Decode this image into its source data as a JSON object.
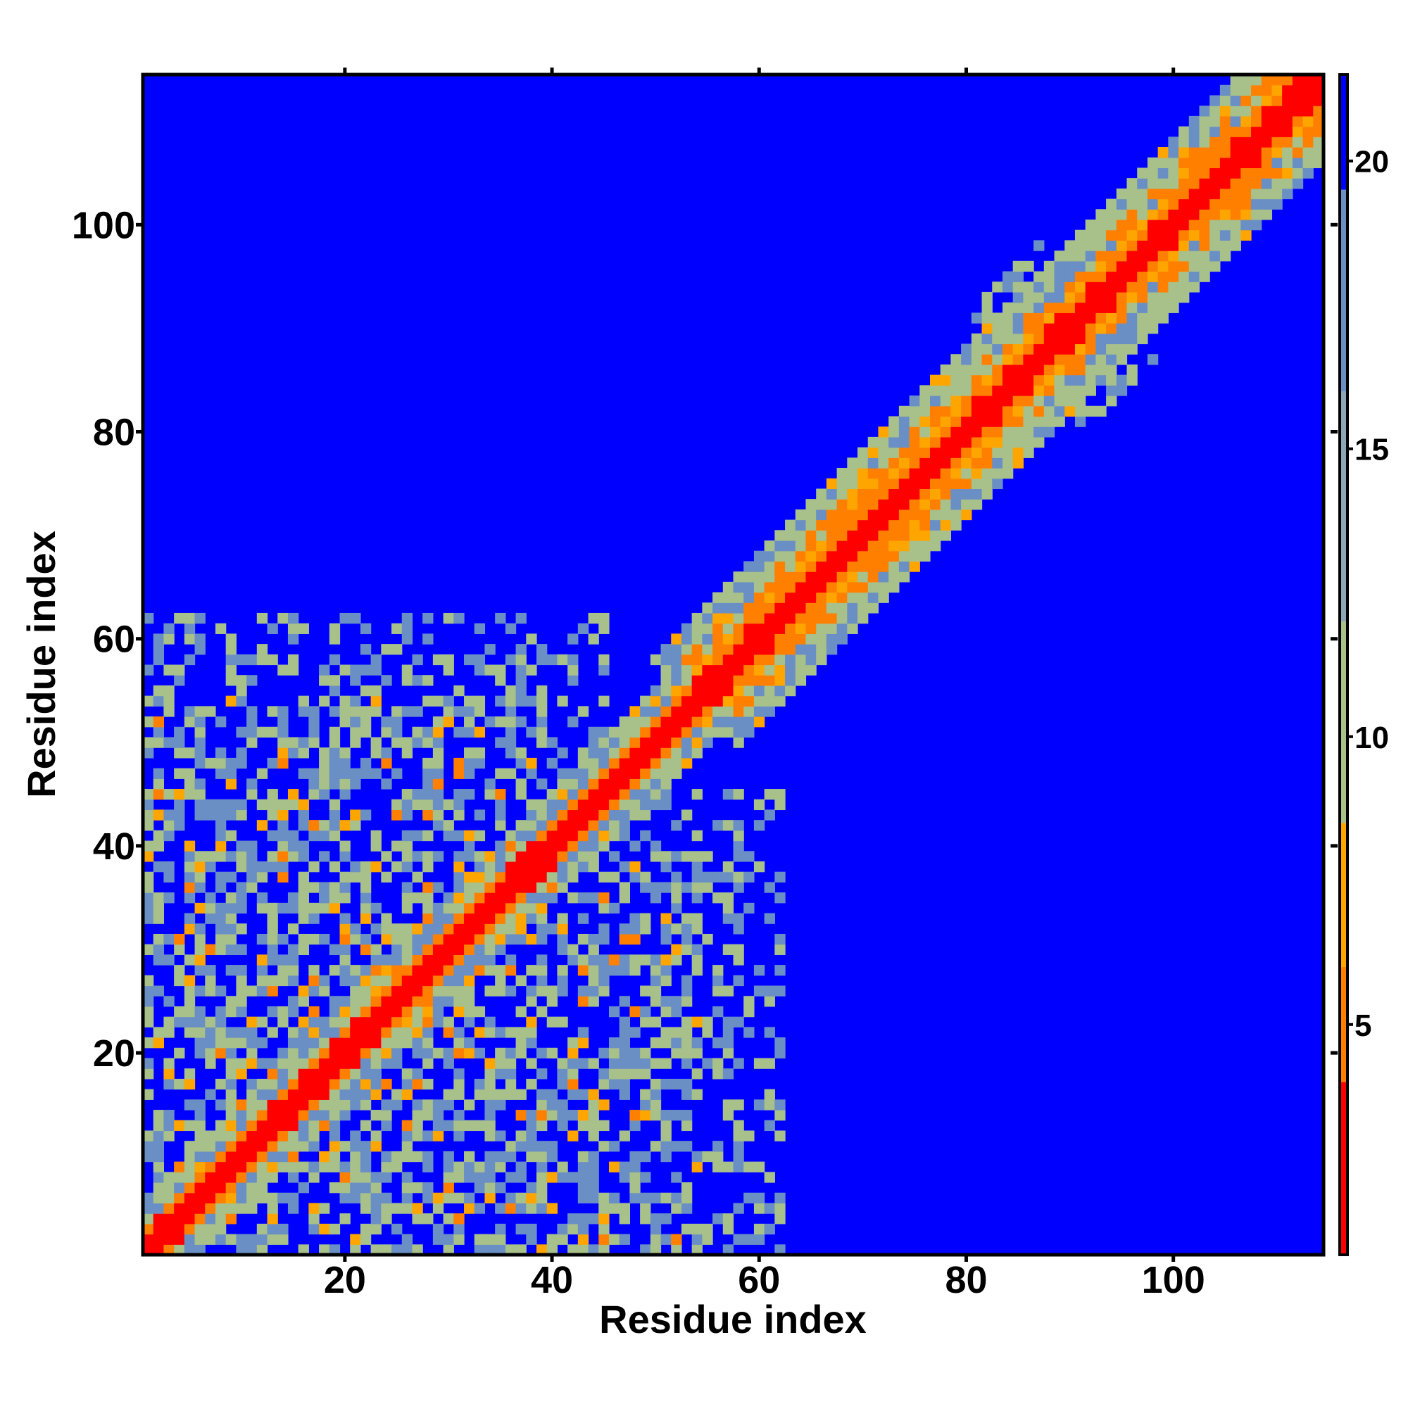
{
  "chart_data": {
    "type": "heatmap",
    "title": "",
    "xlabel": "Residue index",
    "ylabel": "Residue index",
    "xlim": [
      1,
      114
    ],
    "ylim": [
      1,
      114
    ],
    "x_ticks": [
      20,
      40,
      60,
      80,
      100
    ],
    "y_ticks": [
      20,
      40,
      60,
      80,
      100
    ],
    "x_tick_labels": [
      "20",
      "40",
      "60",
      "80",
      "100"
    ],
    "y_tick_labels": [
      "20",
      "40",
      "60",
      "80",
      "100"
    ],
    "n_residues": 114,
    "colorbar": {
      "range": [
        1,
        21.5
      ],
      "ticks": [
        5,
        10,
        15,
        20
      ],
      "tick_labels": [
        "5",
        "10",
        "15",
        "20"
      ],
      "colors": {
        "near": "#ff0000",
        "close": "#ff8000",
        "mid": "#ffa500",
        "far_green": "#a8c08a",
        "far_blue": "#6a8fc4",
        "background": "#0000ff"
      }
    },
    "regions": [
      {
        "name": "diagonal-helix-1-54",
        "range": [
          1,
          54
        ],
        "half_width": 5
      },
      {
        "name": "diagonal-helix-54-114",
        "range": [
          54,
          114
        ],
        "half_width": 8
      },
      {
        "name": "domain-contacts",
        "x": [
          1,
          45
        ],
        "y": [
          1,
          62
        ]
      },
      {
        "name": "domain-contacts-sym",
        "x": [
          1,
          62
        ],
        "y": [
          1,
          45
        ]
      },
      {
        "name": "helix-helix-contacts",
        "x": [
          84,
          95
        ],
        "y": [
          84,
          95
        ]
      }
    ]
  },
  "colors": {
    "background": "#0000ff",
    "contact_close": "#ff0000",
    "contact_mid": "#ff8000",
    "contact_weak": "#a8c08a"
  }
}
